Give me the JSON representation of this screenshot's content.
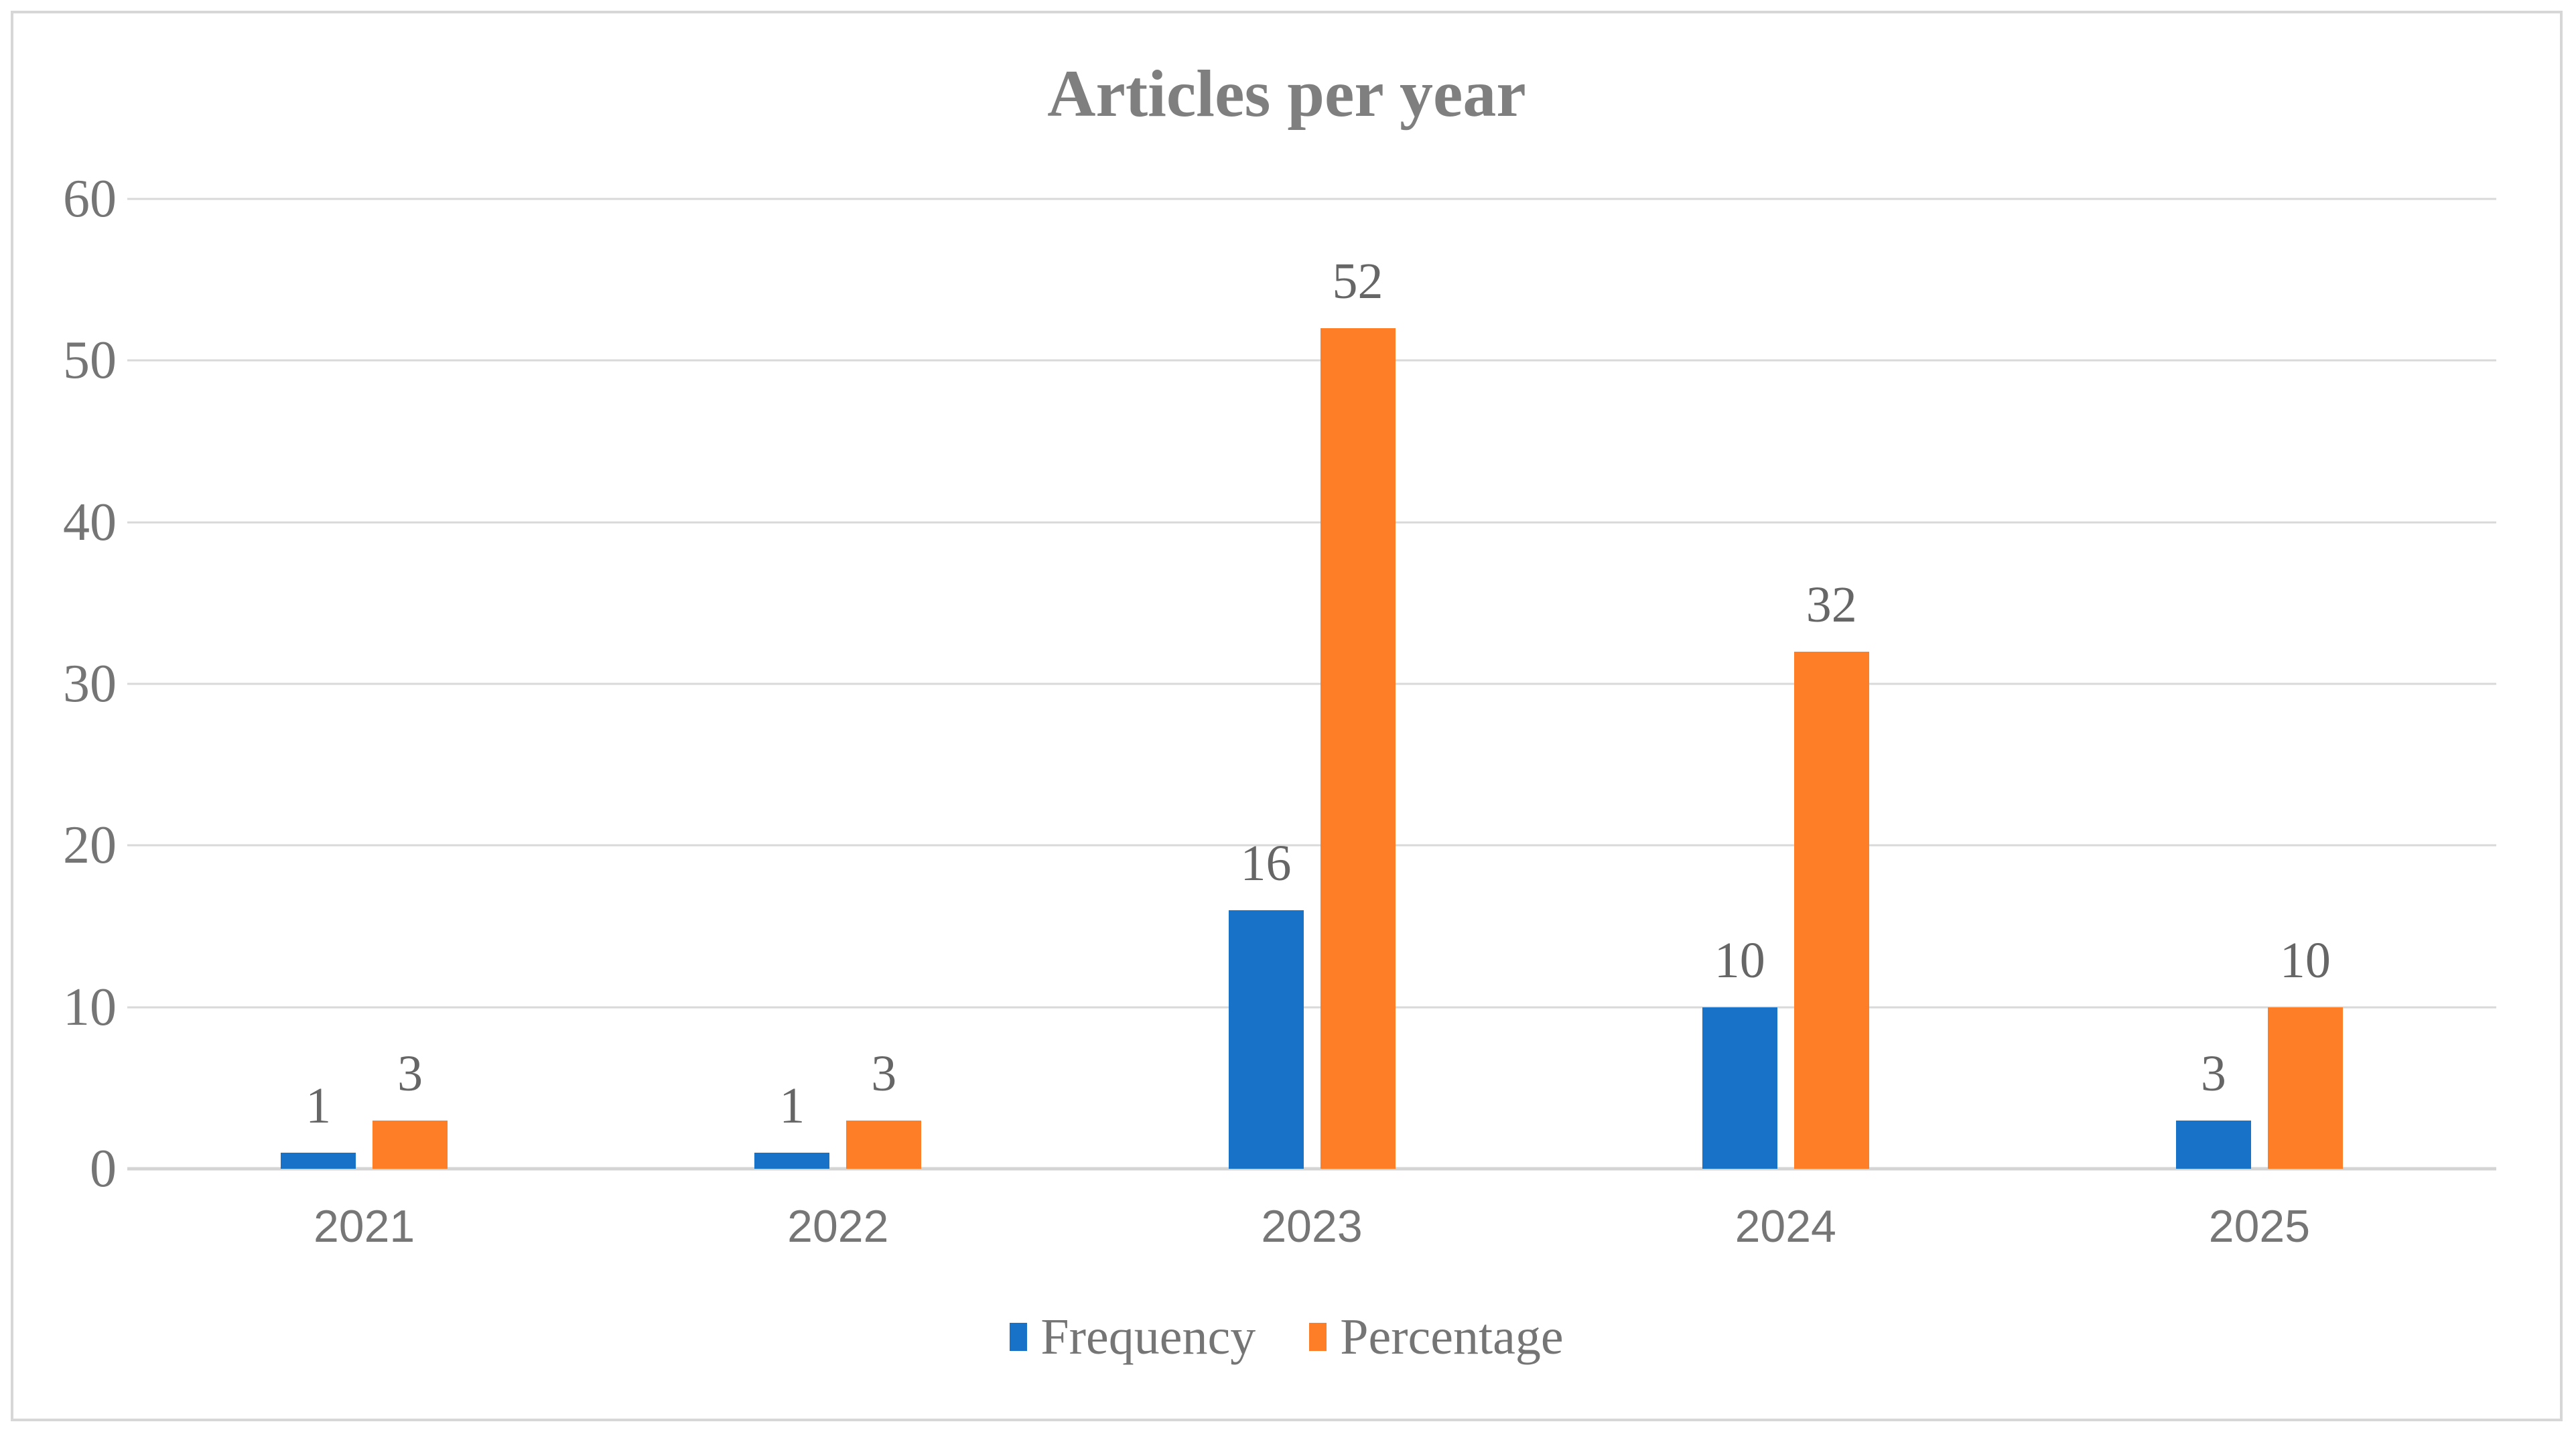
{
  "chart_data": {
    "type": "bar",
    "title": "Articles per year",
    "categories": [
      "2021",
      "2022",
      "2023",
      "2024",
      "2025"
    ],
    "series": [
      {
        "name": "Frequency",
        "color": "#1873C8",
        "values": [
          1,
          1,
          16,
          10,
          3
        ]
      },
      {
        "name": "Percentage",
        "color": "#FD7E27",
        "values": [
          3,
          3,
          52,
          32,
          10
        ]
      }
    ],
    "xlabel": "",
    "ylabel": "",
    "ylim": [
      0,
      60
    ],
    "yticks": [
      0,
      10,
      20,
      30,
      40,
      50,
      60
    ],
    "grid": true,
    "value_labels": true,
    "legend_position": "bottom"
  },
  "colors": {
    "gridline": "#D9D9D9",
    "axis_line": "#D4D4D4",
    "figure_border": "#D7D7D7",
    "title_text": "#7F7F7F",
    "axis_text": "#757575",
    "value_label_text": "#666666",
    "background": "#FFFFFF"
  }
}
